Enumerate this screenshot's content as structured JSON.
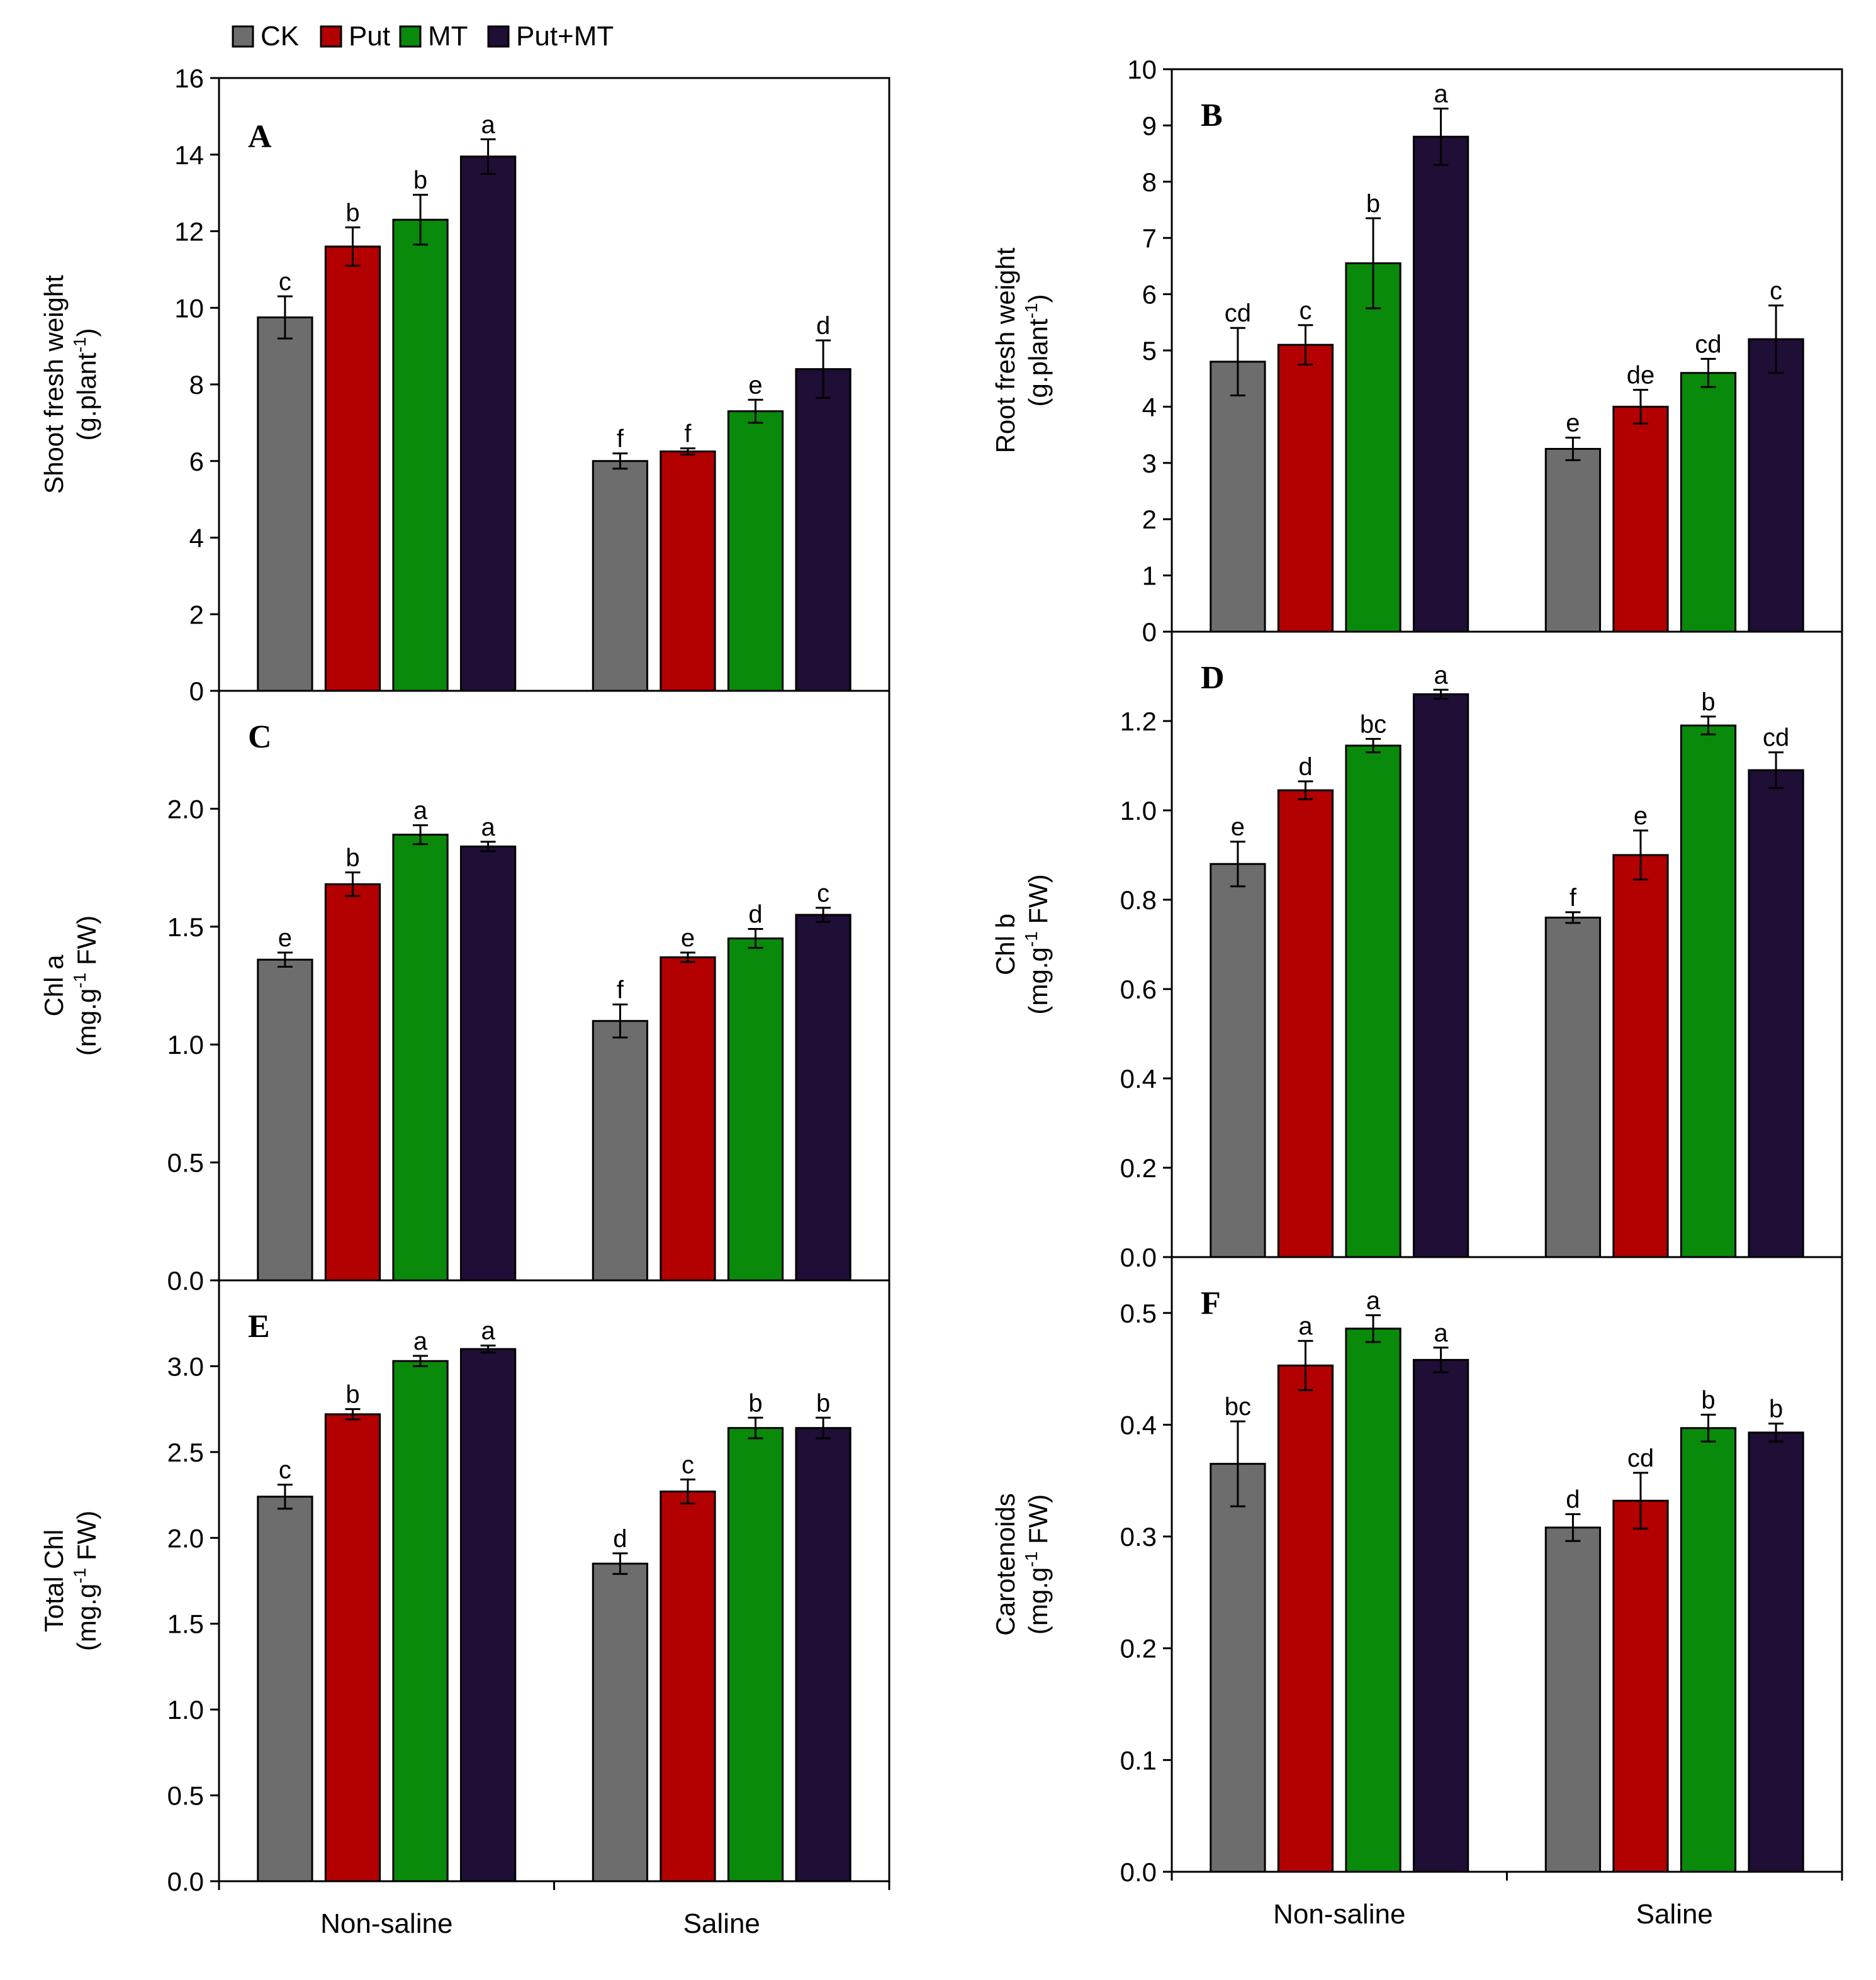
{
  "legend": {
    "items": [
      {
        "label": "CK",
        "color": "#6d6d6d"
      },
      {
        "label": "Put",
        "color": "#b30000"
      },
      {
        "label": "MT",
        "color": "#0a8a0a"
      },
      {
        "label": "Put+MT",
        "color": "#1f0e36"
      }
    ]
  },
  "categories": [
    "Non-saline",
    "Saline"
  ],
  "chart_data": [
    {
      "panel": "A",
      "type": "bar",
      "ylabel_line1": "Shoot fresh weight",
      "ylabel_line2": "(g.plant",
      "ylabel_sup": "-1",
      "ylabel_tail": ")",
      "ylim": [
        0,
        16
      ],
      "ticks": [
        "0",
        "2",
        "4",
        "6",
        "8",
        "10",
        "12",
        "14",
        "16"
      ],
      "tick_values": [
        0,
        2,
        4,
        6,
        8,
        10,
        12,
        14,
        16
      ],
      "show_categories": false,
      "series": [
        {
          "name": "CK",
          "values": [
            9.75,
            6.0
          ],
          "errors": [
            0.55,
            0.2
          ],
          "labels": [
            "c",
            "f"
          ]
        },
        {
          "name": "Put",
          "values": [
            11.6,
            6.25
          ],
          "errors": [
            0.5,
            0.08
          ],
          "labels": [
            "b",
            "f"
          ]
        },
        {
          "name": "MT",
          "values": [
            12.3,
            7.3
          ],
          "errors": [
            0.65,
            0.3
          ],
          "labels": [
            "b",
            "e"
          ]
        },
        {
          "name": "Put+MT",
          "values": [
            13.95,
            8.4
          ],
          "errors": [
            0.45,
            0.75
          ],
          "labels": [
            "a",
            "d"
          ]
        }
      ]
    },
    {
      "panel": "B",
      "type": "bar",
      "ylabel_line1": "Root fresh weight",
      "ylabel_line2": "(g.plant",
      "ylabel_sup": "-1",
      "ylabel_tail": ")",
      "ylim": [
        0,
        10
      ],
      "ticks": [
        "0",
        "1",
        "2",
        "3",
        "4",
        "5",
        "6",
        "7",
        "8",
        "9",
        "10"
      ],
      "tick_values": [
        0,
        1,
        2,
        3,
        4,
        5,
        6,
        7,
        8,
        9,
        10
      ],
      "show_categories": false,
      "series": [
        {
          "name": "CK",
          "values": [
            4.8,
            3.25
          ],
          "errors": [
            0.6,
            0.2
          ],
          "labels": [
            "cd",
            "e"
          ]
        },
        {
          "name": "Put",
          "values": [
            5.1,
            4.0
          ],
          "errors": [
            0.35,
            0.3
          ],
          "labels": [
            "c",
            "de"
          ]
        },
        {
          "name": "MT",
          "values": [
            6.55,
            4.6
          ],
          "errors": [
            0.8,
            0.25
          ],
          "labels": [
            "b",
            "cd"
          ]
        },
        {
          "name": "Put+MT",
          "values": [
            8.8,
            5.2
          ],
          "errors": [
            0.5,
            0.6
          ],
          "labels": [
            "a",
            "c"
          ]
        }
      ]
    },
    {
      "panel": "C",
      "type": "bar",
      "ylabel_line1": "Chl a",
      "ylabel_line2": "(mg.g",
      "ylabel_sup": "-1",
      "ylabel_tail": " FW)",
      "ylim": [
        0,
        2.5
      ],
      "ticks": [
        "0.0",
        "0.5",
        "1.0",
        "1.5",
        "2.0"
      ],
      "tick_values": [
        0,
        0.5,
        1.0,
        1.5,
        2.0
      ],
      "show_categories": false,
      "series": [
        {
          "name": "CK",
          "values": [
            1.36,
            1.1
          ],
          "errors": [
            0.03,
            0.07
          ],
          "labels": [
            "e",
            "f"
          ]
        },
        {
          "name": "Put",
          "values": [
            1.68,
            1.37
          ],
          "errors": [
            0.05,
            0.02
          ],
          "labels": [
            "b",
            "e"
          ]
        },
        {
          "name": "MT",
          "values": [
            1.89,
            1.45
          ],
          "errors": [
            0.04,
            0.04
          ],
          "labels": [
            "a",
            "d"
          ]
        },
        {
          "name": "Put+MT",
          "values": [
            1.84,
            1.55
          ],
          "errors": [
            0.02,
            0.03
          ],
          "labels": [
            "a",
            "c"
          ]
        }
      ]
    },
    {
      "panel": "D",
      "type": "bar",
      "ylabel_line1": "Chl b",
      "ylabel_line2": "(mg.g",
      "ylabel_sup": "-1",
      "ylabel_tail": " FW)",
      "ylim": [
        0,
        1.4
      ],
      "ticks": [
        "0.0",
        "0.2",
        "0.4",
        "0.6",
        "0.8",
        "1.0",
        "1.2"
      ],
      "tick_values": [
        0,
        0.2,
        0.4,
        0.6,
        0.8,
        1.0,
        1.2
      ],
      "show_categories": false,
      "series": [
        {
          "name": "CK",
          "values": [
            0.88,
            0.76
          ],
          "errors": [
            0.05,
            0.012
          ],
          "labels": [
            "e",
            "f"
          ]
        },
        {
          "name": "Put",
          "values": [
            1.045,
            0.9
          ],
          "errors": [
            0.02,
            0.055
          ],
          "labels": [
            "d",
            "e"
          ]
        },
        {
          "name": "MT",
          "values": [
            1.145,
            1.19
          ],
          "errors": [
            0.015,
            0.02
          ],
          "labels": [
            "bc",
            "b"
          ]
        },
        {
          "name": "Put+MT",
          "values": [
            1.26,
            1.09
          ],
          "errors": [
            0.01,
            0.04
          ],
          "labels": [
            "a",
            "cd"
          ]
        }
      ]
    },
    {
      "panel": "E",
      "type": "bar",
      "ylabel_line1": "Total Chl",
      "ylabel_line2": "(mg.g",
      "ylabel_sup": "-1",
      "ylabel_tail": " FW)",
      "ylim": [
        0,
        3.5
      ],
      "ticks": [
        "0.0",
        "0.5",
        "1.0",
        "1.5",
        "2.0",
        "2.5",
        "3.0"
      ],
      "tick_values": [
        0,
        0.5,
        1.0,
        1.5,
        2.0,
        2.5,
        3.0
      ],
      "show_categories": true,
      "series": [
        {
          "name": "CK",
          "values": [
            2.24,
            1.85
          ],
          "errors": [
            0.07,
            0.06
          ],
          "labels": [
            "c",
            "d"
          ]
        },
        {
          "name": "Put",
          "values": [
            2.72,
            2.27
          ],
          "errors": [
            0.03,
            0.07
          ],
          "labels": [
            "b",
            "c"
          ]
        },
        {
          "name": "MT",
          "values": [
            3.03,
            2.64
          ],
          "errors": [
            0.03,
            0.06
          ],
          "labels": [
            "a",
            "b"
          ]
        },
        {
          "name": "Put+MT",
          "values": [
            3.1,
            2.64
          ],
          "errors": [
            0.02,
            0.06
          ],
          "labels": [
            "a",
            "b"
          ]
        }
      ]
    },
    {
      "panel": "F",
      "type": "bar",
      "ylabel_line1": "Carotenoids",
      "ylabel_line2": "(mg.g",
      "ylabel_sup": "-1",
      "ylabel_tail": " FW)",
      "ylim": [
        0,
        0.55
      ],
      "ticks": [
        "0.0",
        "0.1",
        "0.2",
        "0.3",
        "0.4",
        "0.5"
      ],
      "tick_values": [
        0,
        0.1,
        0.2,
        0.3,
        0.4,
        0.5
      ],
      "show_categories": true,
      "series": [
        {
          "name": "CK",
          "values": [
            0.365,
            0.308
          ],
          "errors": [
            0.038,
            0.012
          ],
          "labels": [
            "bc",
            "d"
          ]
        },
        {
          "name": "Put",
          "values": [
            0.453,
            0.332
          ],
          "errors": [
            0.022,
            0.025
          ],
          "labels": [
            "a",
            "cd"
          ]
        },
        {
          "name": "MT",
          "values": [
            0.486,
            0.397
          ],
          "errors": [
            0.012,
            0.012
          ],
          "labels": [
            "a",
            "b"
          ]
        },
        {
          "name": "Put+MT",
          "values": [
            0.458,
            0.393
          ],
          "errors": [
            0.011,
            0.008
          ],
          "labels": [
            "a",
            "b"
          ]
        }
      ]
    }
  ]
}
